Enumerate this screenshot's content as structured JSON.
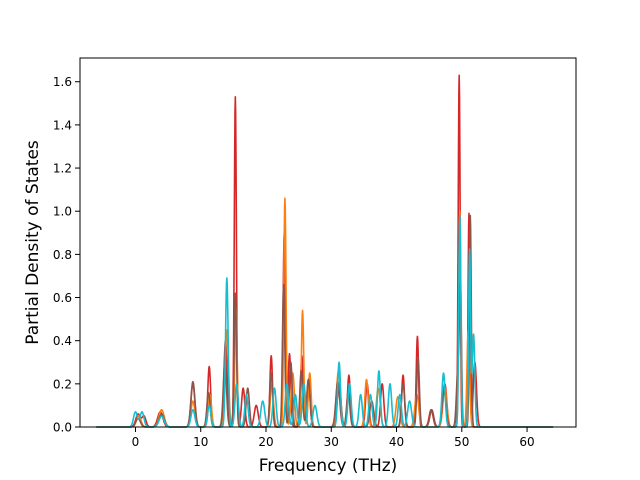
{
  "chart_data": {
    "type": "line",
    "title": "",
    "xlabel": "Frequency (THz)",
    "ylabel": "Partial Density of States",
    "xlim": [
      -8.5,
      67.5
    ],
    "ylim": [
      0.0,
      1.71
    ],
    "xticks": [
      0,
      10,
      20,
      30,
      40,
      50,
      60
    ],
    "yticks": [
      0.0,
      0.2,
      0.4,
      0.6,
      0.8,
      1.0,
      1.2,
      1.4,
      1.6
    ],
    "grid": false,
    "legend": "none",
    "x_range": [
      -6.0,
      64.0
    ],
    "series": [
      {
        "color": "#d62728",
        "peaks": [
          [
            0.4,
            0.06,
            0.35
          ],
          [
            1.3,
            0.05,
            0.3
          ],
          [
            3.8,
            0.07,
            0.4
          ],
          [
            8.8,
            0.2,
            0.3
          ],
          [
            11.3,
            0.28,
            0.22
          ],
          [
            13.8,
            0.4,
            0.25
          ],
          [
            15.3,
            1.53,
            0.16
          ],
          [
            16.5,
            0.18,
            0.25
          ],
          [
            18.5,
            0.1,
            0.3
          ],
          [
            20.8,
            0.33,
            0.2
          ],
          [
            22.8,
            0.9,
            0.18
          ],
          [
            23.6,
            0.34,
            0.2
          ],
          [
            25.5,
            0.33,
            0.2
          ],
          [
            26.5,
            0.22,
            0.25
          ],
          [
            31.2,
            0.19,
            0.3
          ],
          [
            32.7,
            0.24,
            0.22
          ],
          [
            35.5,
            0.2,
            0.25
          ],
          [
            37.8,
            0.2,
            0.25
          ],
          [
            41.0,
            0.24,
            0.22
          ],
          [
            43.2,
            0.42,
            0.18
          ],
          [
            45.3,
            0.08,
            0.3
          ],
          [
            47.4,
            0.2,
            0.3
          ],
          [
            49.6,
            1.63,
            0.15
          ],
          [
            51.1,
            0.99,
            0.14
          ],
          [
            52.0,
            0.3,
            0.25
          ]
        ]
      },
      {
        "color": "#ff7f0e",
        "peaks": [
          [
            0.5,
            0.05,
            0.35
          ],
          [
            4.0,
            0.08,
            0.4
          ],
          [
            8.8,
            0.12,
            0.3
          ],
          [
            11.4,
            0.15,
            0.25
          ],
          [
            14.0,
            0.45,
            0.25
          ],
          [
            15.4,
            0.55,
            0.18
          ],
          [
            20.9,
            0.2,
            0.25
          ],
          [
            22.9,
            1.06,
            0.17
          ],
          [
            24.1,
            0.25,
            0.25
          ],
          [
            25.6,
            0.54,
            0.18
          ],
          [
            26.7,
            0.25,
            0.22
          ],
          [
            31.1,
            0.26,
            0.3
          ],
          [
            35.4,
            0.22,
            0.25
          ],
          [
            37.2,
            0.18,
            0.3
          ],
          [
            40.2,
            0.14,
            0.3
          ],
          [
            43.1,
            0.15,
            0.3
          ],
          [
            47.4,
            0.18,
            0.3
          ],
          [
            49.7,
            1.0,
            0.16
          ],
          [
            51.0,
            0.45,
            0.2
          ]
        ]
      },
      {
        "color": "#8c564b",
        "peaks": [
          [
            0.4,
            0.04,
            0.35
          ],
          [
            4.0,
            0.06,
            0.4
          ],
          [
            8.8,
            0.21,
            0.3
          ],
          [
            11.2,
            0.16,
            0.25
          ],
          [
            13.7,
            0.3,
            0.25
          ],
          [
            15.3,
            0.62,
            0.18
          ],
          [
            17.2,
            0.18,
            0.25
          ],
          [
            20.8,
            0.25,
            0.22
          ],
          [
            22.7,
            0.66,
            0.18
          ],
          [
            23.8,
            0.3,
            0.22
          ],
          [
            25.4,
            0.26,
            0.22
          ],
          [
            26.5,
            0.22,
            0.25
          ],
          [
            31.0,
            0.21,
            0.3
          ],
          [
            32.6,
            0.16,
            0.25
          ],
          [
            36.2,
            0.12,
            0.3
          ],
          [
            41.0,
            0.2,
            0.25
          ],
          [
            43.3,
            0.32,
            0.2
          ],
          [
            45.4,
            0.08,
            0.3
          ],
          [
            47.3,
            0.17,
            0.3
          ],
          [
            49.4,
            0.26,
            0.22
          ],
          [
            49.8,
            0.62,
            0.16
          ],
          [
            51.3,
            0.98,
            0.15
          ]
        ]
      },
      {
        "color": "#17becf",
        "peaks": [
          [
            0.0,
            0.07,
            0.3
          ],
          [
            1.0,
            0.07,
            0.3
          ],
          [
            4.0,
            0.05,
            0.4
          ],
          [
            8.8,
            0.08,
            0.3
          ],
          [
            11.3,
            0.1,
            0.25
          ],
          [
            14.0,
            0.69,
            0.2
          ],
          [
            15.5,
            0.2,
            0.25
          ],
          [
            17.0,
            0.15,
            0.25
          ],
          [
            19.5,
            0.12,
            0.3
          ],
          [
            21.3,
            0.18,
            0.25
          ],
          [
            23.2,
            0.2,
            0.25
          ],
          [
            24.5,
            0.15,
            0.25
          ],
          [
            25.8,
            0.2,
            0.25
          ],
          [
            27.5,
            0.1,
            0.3
          ],
          [
            31.2,
            0.3,
            0.22
          ],
          [
            32.8,
            0.2,
            0.25
          ],
          [
            34.5,
            0.15,
            0.25
          ],
          [
            36.0,
            0.15,
            0.25
          ],
          [
            37.3,
            0.26,
            0.22
          ],
          [
            39.0,
            0.2,
            0.25
          ],
          [
            40.5,
            0.15,
            0.25
          ],
          [
            42.0,
            0.12,
            0.3
          ],
          [
            47.2,
            0.25,
            0.25
          ],
          [
            49.7,
            0.98,
            0.16
          ],
          [
            51.2,
            0.82,
            0.15
          ],
          [
            51.8,
            0.43,
            0.2
          ]
        ]
      }
    ]
  }
}
